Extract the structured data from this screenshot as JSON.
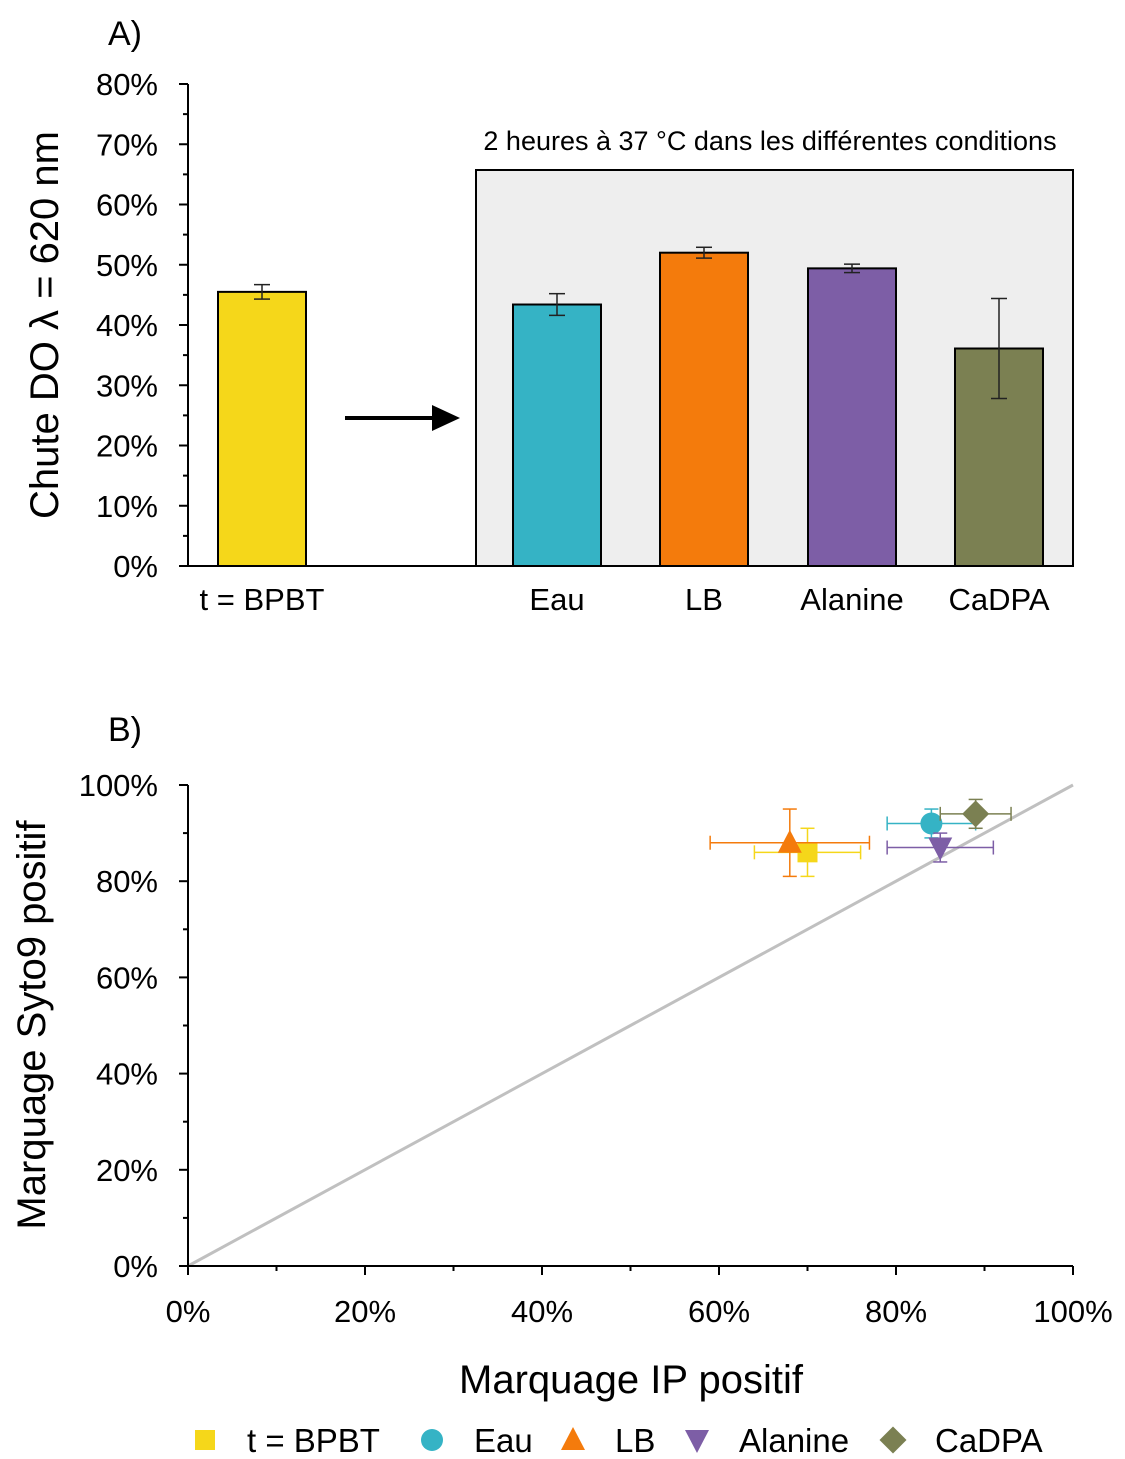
{
  "chart_data": [
    {
      "panel_label": "A)",
      "type": "bar",
      "ylabel": "Chute DO λ = 620 nm",
      "ylim": [
        0,
        80
      ],
      "yticks": [
        "0%",
        "10%",
        "20%",
        "30%",
        "40%",
        "50%",
        "60%",
        "70%",
        "80%"
      ],
      "box_label": "2 heures à 37 °C dans les différentes conditions",
      "categories": [
        "t = BPBT",
        "Eau",
        "LB",
        "Alanine",
        "CaDPA"
      ],
      "values": [
        45.5,
        43.4,
        52.0,
        49.4,
        36.1
      ],
      "errors": [
        1.2,
        1.8,
        0.9,
        0.7,
        8.3
      ],
      "colors": [
        "#f5d71a",
        "#35b3c5",
        "#f47b0c",
        "#7d5ea6",
        "#7b8052"
      ],
      "boxed_categories": [
        "Eau",
        "LB",
        "Alanine",
        "CaDPA"
      ],
      "arrow": "t = BPBT → conditions"
    },
    {
      "panel_label": "B)",
      "type": "scatter",
      "xlabel": "Marquage IP positif",
      "ylabel": "Marquage Syto9 positif",
      "xlim": [
        0,
        100
      ],
      "ylim": [
        0,
        100
      ],
      "xticks": [
        "0%",
        "20%",
        "40%",
        "60%",
        "80%",
        "100%"
      ],
      "yticks": [
        "0%",
        "20%",
        "40%",
        "60%",
        "80%",
        "100%"
      ],
      "reference_line": {
        "from": [
          0,
          0
        ],
        "to": [
          100,
          100
        ],
        "color": "#c0c0c0"
      },
      "series": [
        {
          "name": "t = BPBT",
          "marker": "square",
          "color": "#f5d71a",
          "x": 70,
          "y": 86,
          "xerr": 6,
          "yerr": 5
        },
        {
          "name": "Eau",
          "marker": "circle",
          "color": "#35b3c5",
          "x": 84,
          "y": 92,
          "xerr": 5,
          "yerr": 3
        },
        {
          "name": "LB",
          "marker": "triangle-up",
          "color": "#f47b0c",
          "x": 68,
          "y": 88,
          "xerr": 9,
          "yerr": 7
        },
        {
          "name": "Alanine",
          "marker": "triangle-down",
          "color": "#7d5ea6",
          "x": 85,
          "y": 87,
          "xerr": 6,
          "yerr": 3
        },
        {
          "name": "CaDPA",
          "marker": "diamond",
          "color": "#7b8052",
          "x": 89,
          "y": 94,
          "xerr": 4,
          "yerr": 3
        }
      ],
      "legend_position": "bottom"
    }
  ]
}
